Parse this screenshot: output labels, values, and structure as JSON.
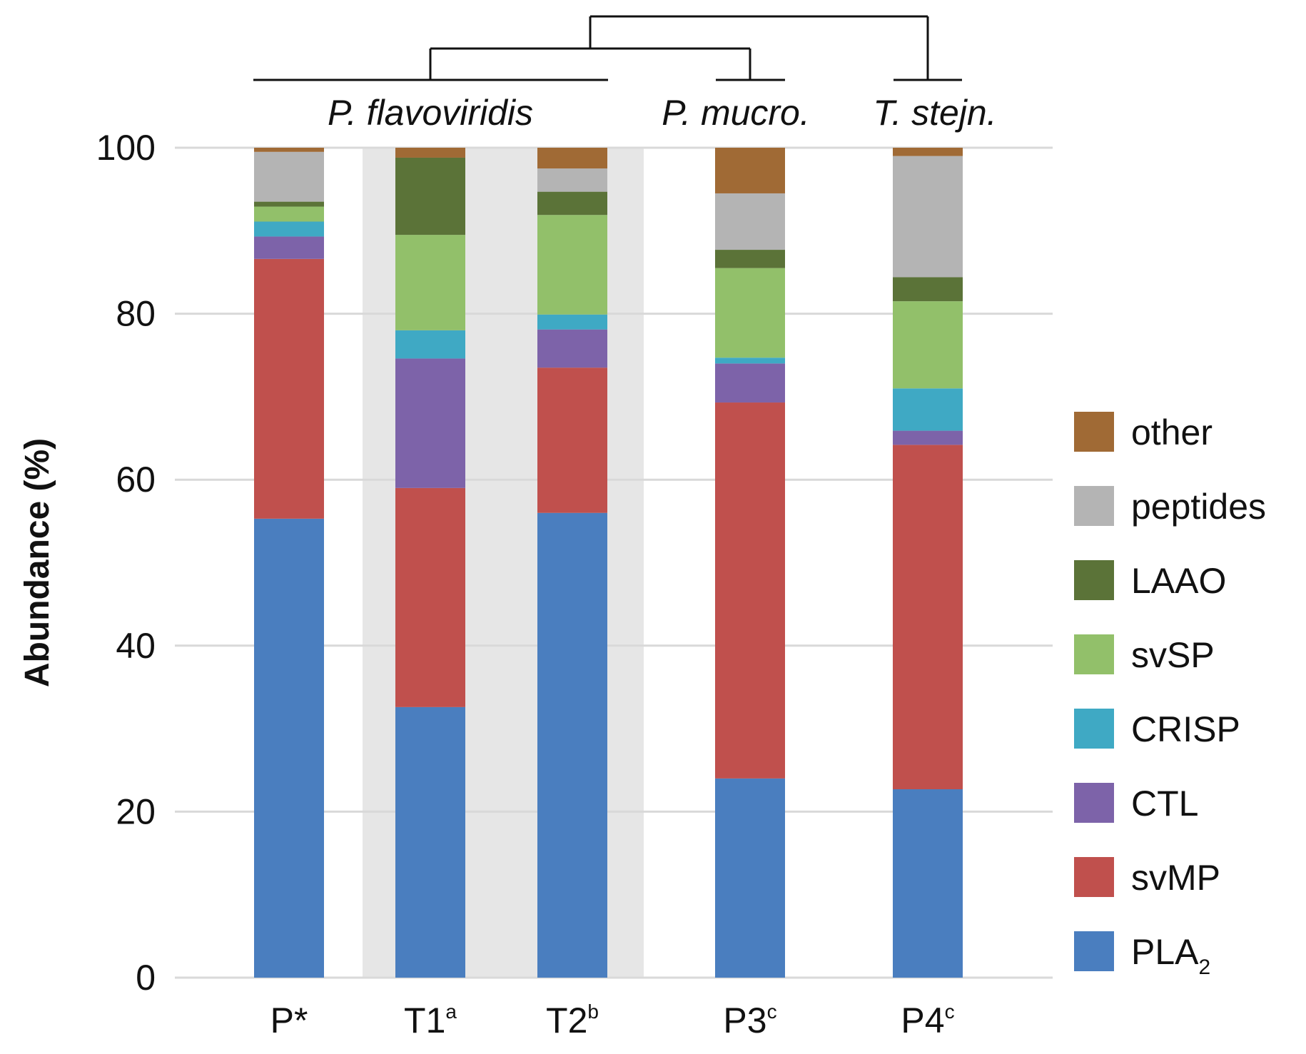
{
  "chart_data": {
    "type": "bar",
    "stacked": true,
    "xlabel": "",
    "ylabel": "Abundance (%)",
    "ylim": [
      0,
      100
    ],
    "yticks": [
      0,
      20,
      40,
      60,
      80,
      100
    ],
    "grid": "horizontal",
    "legend_position": "right",
    "categories": [
      {
        "label": "P*",
        "sup": ""
      },
      {
        "label": "T1",
        "sup": "a"
      },
      {
        "label": "T2",
        "sup": "b"
      },
      {
        "label": "P3",
        "sup": "c"
      },
      {
        "label": "P4",
        "sup": "c"
      }
    ],
    "shaded_categories": [
      1,
      2
    ],
    "species_labels": [
      {
        "text": "P. flavoviridis",
        "categories": [
          0,
          1,
          2
        ]
      },
      {
        "text": "P. mucro.",
        "categories": [
          3
        ]
      },
      {
        "text": "T. stejn.",
        "categories": [
          4
        ]
      }
    ],
    "dendrogram": {
      "groups": [
        [
          0,
          1,
          2
        ],
        [
          3
        ],
        [
          4
        ]
      ],
      "merges": [
        [
          0,
          1
        ],
        [
          2
        ]
      ]
    },
    "series": [
      {
        "name": "PLA",
        "subscript": "2",
        "color": "#4a7ebf",
        "values": [
          55.3,
          32.6,
          56.0,
          24.0,
          22.7
        ]
      },
      {
        "name": "svMP",
        "subscript": "",
        "color": "#c0504d",
        "values": [
          31.3,
          26.4,
          17.5,
          45.3,
          41.5
        ]
      },
      {
        "name": "CTL",
        "subscript": "",
        "color": "#7d63a9",
        "values": [
          2.7,
          15.6,
          4.6,
          4.7,
          1.7
        ]
      },
      {
        "name": "CRISP",
        "subscript": "",
        "color": "#3fa9c4",
        "values": [
          1.8,
          3.4,
          1.8,
          0.7,
          5.1
        ]
      },
      {
        "name": "svSP",
        "subscript": "",
        "color": "#92c06a",
        "values": [
          1.8,
          11.5,
          12.0,
          10.8,
          10.5
        ]
      },
      {
        "name": "LAAO",
        "subscript": "",
        "color": "#5b7338",
        "values": [
          0.6,
          9.3,
          2.8,
          2.2,
          2.9
        ]
      },
      {
        "name": "peptides",
        "subscript": "",
        "color": "#b4b4b4",
        "values": [
          6.0,
          0.0,
          2.8,
          6.8,
          14.6
        ]
      },
      {
        "name": "other",
        "subscript": "",
        "color": "#a06a35",
        "values": [
          0.5,
          1.2,
          2.5,
          5.5,
          1.0
        ]
      }
    ]
  }
}
